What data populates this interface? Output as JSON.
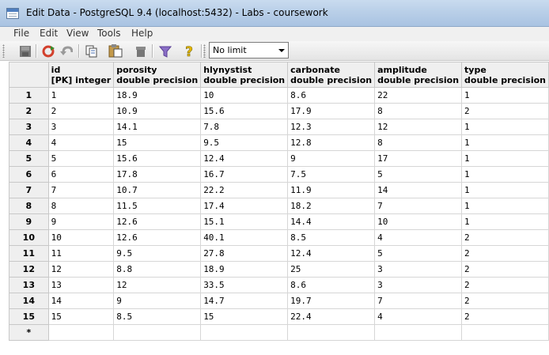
{
  "window": {
    "title": "Edit Data - PostgreSQL 9.4 (localhost:5432) - Labs - coursework"
  },
  "menu": [
    "File",
    "Edit",
    "View",
    "Tools",
    "Help"
  ],
  "toolbar": {
    "limit_value": "No limit"
  },
  "grid": {
    "columns": [
      {
        "name": "id",
        "type": "[PK] integer"
      },
      {
        "name": "porosity",
        "type": "double precision"
      },
      {
        "name": "hlynystist",
        "type": "double precision"
      },
      {
        "name": "carbonate",
        "type": "double precision"
      },
      {
        "name": "amplitude",
        "type": "double precision"
      },
      {
        "name": "type",
        "type": "double precision"
      }
    ],
    "rows": [
      {
        "num": "1",
        "cells": [
          "1",
          "18.9",
          "10",
          "8.6",
          "22",
          "1"
        ]
      },
      {
        "num": "2",
        "cells": [
          "2",
          "10.9",
          "15.6",
          "17.9",
          "8",
          "2"
        ]
      },
      {
        "num": "3",
        "cells": [
          "3",
          "14.1",
          "7.8",
          "12.3",
          "12",
          "1"
        ]
      },
      {
        "num": "4",
        "cells": [
          "4",
          "15",
          "9.5",
          "12.8",
          "8",
          "1"
        ]
      },
      {
        "num": "5",
        "cells": [
          "5",
          "15.6",
          "12.4",
          "9",
          "17",
          "1"
        ]
      },
      {
        "num": "6",
        "cells": [
          "6",
          "17.8",
          "16.7",
          "7.5",
          "5",
          "1"
        ]
      },
      {
        "num": "7",
        "cells": [
          "7",
          "10.7",
          "22.2",
          "11.9",
          "14",
          "1"
        ]
      },
      {
        "num": "8",
        "cells": [
          "8",
          "11.5",
          "17.4",
          "18.2",
          "7",
          "1"
        ]
      },
      {
        "num": "9",
        "cells": [
          "9",
          "12.6",
          "15.1",
          "14.4",
          "10",
          "1"
        ]
      },
      {
        "num": "10",
        "cells": [
          "10",
          "12.6",
          "40.1",
          "8.5",
          "4",
          "2"
        ]
      },
      {
        "num": "11",
        "cells": [
          "11",
          "9.5",
          "27.8",
          "12.4",
          "5",
          "2"
        ]
      },
      {
        "num": "12",
        "cells": [
          "12",
          "8.8",
          "18.9",
          "25",
          "3",
          "2"
        ]
      },
      {
        "num": "13",
        "cells": [
          "13",
          "12",
          "33.5",
          "8.6",
          "3",
          "2"
        ]
      },
      {
        "num": "14",
        "cells": [
          "14",
          "9",
          "14.7",
          "19.7",
          "7",
          "2"
        ]
      },
      {
        "num": "15",
        "cells": [
          "15",
          "8.5",
          "15",
          "22.4",
          "4",
          "2"
        ]
      }
    ],
    "new_row_marker": "*"
  }
}
